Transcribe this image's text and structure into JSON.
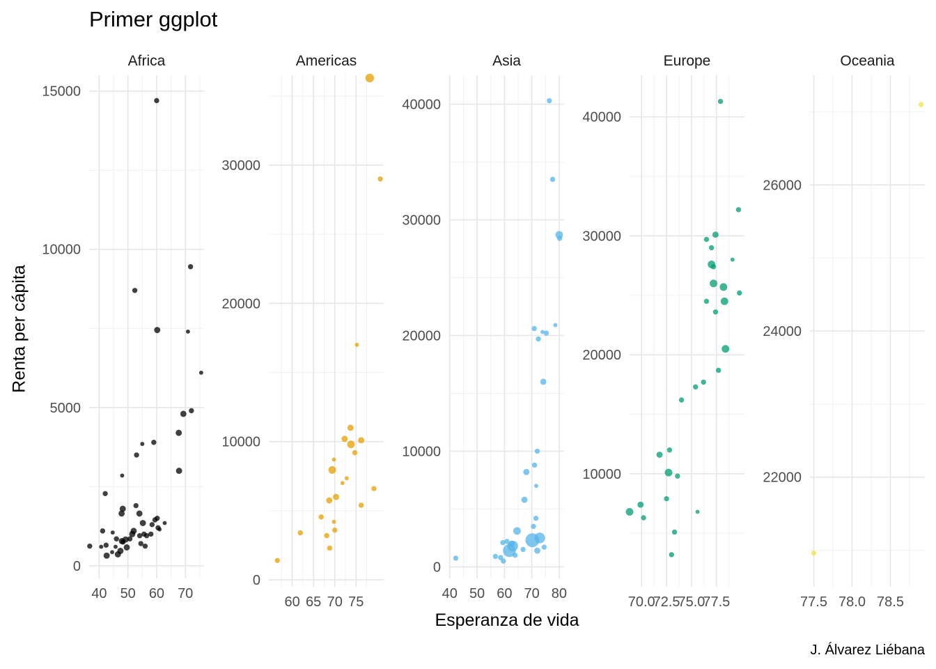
{
  "title": "Primer ggplot",
  "caption": "J. Álvarez Liébana",
  "chart_data": {
    "type": "scatter",
    "xlabel": "Esperanza de vida",
    "ylabel": "Renta per cápita",
    "facet_scales": "free",
    "colors": {
      "Africa": "#000000",
      "Americas": "#E69F00",
      "Asia": "#56B4E9",
      "Europe": "#009E73",
      "Oceania": "#F0E442"
    },
    "point_opacity": 0.75,
    "size_encoding": "population (no legend shown)",
    "grid": true,
    "facets": [
      {
        "name": "Africa",
        "xlim": [
          36.5,
          76.5
        ],
        "ylim": [
          -400,
          15500
        ],
        "xticks": [
          40,
          50,
          60,
          70
        ],
        "yticks": [
          0,
          5000,
          10000,
          15000
        ],
        "points": [
          [
            60.0,
            14700,
            2
          ],
          [
            52.4,
            8700,
            2
          ],
          [
            71.8,
            9450,
            2
          ],
          [
            60.2,
            7450,
            3
          ],
          [
            70.9,
            7400,
            1
          ],
          [
            75.5,
            6100,
            1
          ],
          [
            72.1,
            4900,
            2
          ],
          [
            69.3,
            4800,
            3
          ],
          [
            67.7,
            4200,
            3
          ],
          [
            67.8,
            3000,
            3
          ],
          [
            55.0,
            3850,
            1
          ],
          [
            59.0,
            3900,
            2
          ],
          [
            53.0,
            3500,
            2
          ],
          [
            48.0,
            2850,
            1
          ],
          [
            42.1,
            2280,
            2
          ],
          [
            52.8,
            1900,
            2
          ],
          [
            48.2,
            1800,
            3
          ],
          [
            47.8,
            1650,
            3
          ],
          [
            54.0,
            1650,
            3
          ],
          [
            55.2,
            1350,
            3
          ],
          [
            59.4,
            1450,
            2
          ],
          [
            60.2,
            1500,
            2
          ],
          [
            62.8,
            1350,
            1
          ],
          [
            58.4,
            1300,
            2
          ],
          [
            60.5,
            1200,
            2
          ],
          [
            41.2,
            1100,
            2
          ],
          [
            44.7,
            1050,
            1
          ],
          [
            46.0,
            850,
            2
          ],
          [
            47.9,
            780,
            3
          ],
          [
            49.2,
            830,
            3
          ],
          [
            50.7,
            850,
            2
          ],
          [
            51.5,
            1000,
            3
          ],
          [
            52.0,
            1100,
            3
          ],
          [
            54.1,
            950,
            2
          ],
          [
            55.6,
            1000,
            2
          ],
          [
            56.5,
            950,
            2
          ],
          [
            58.0,
            1000,
            2
          ],
          [
            61.0,
            1150,
            1
          ],
          [
            36.7,
            620,
            2
          ],
          [
            40.7,
            600,
            1
          ],
          [
            42.4,
            650,
            2
          ],
          [
            45.7,
            600,
            1
          ],
          [
            47.4,
            470,
            3
          ],
          [
            48.3,
            750,
            2
          ],
          [
            49.6,
            580,
            3
          ],
          [
            54.5,
            700,
            2
          ],
          [
            56.0,
            620,
            2
          ],
          [
            46.5,
            360,
            3
          ],
          [
            42.6,
            320,
            3
          ],
          [
            44.5,
            430,
            1
          ]
        ]
      },
      {
        "name": "Americas",
        "xlim": [
          54.5,
          81.5
        ],
        "ylim": [
          -500,
          36500
        ],
        "xticks": [
          60,
          65,
          70,
          75
        ],
        "yticks": [
          0,
          10000,
          20000,
          30000
        ],
        "points": [
          [
            78.2,
            36300,
            5
          ],
          [
            80.7,
            29000,
            2
          ],
          [
            75.2,
            17000,
            1
          ],
          [
            73.7,
            11000,
            3
          ],
          [
            72.3,
            10200,
            3
          ],
          [
            73.8,
            9800,
            4
          ],
          [
            76.2,
            10100,
            3
          ],
          [
            74.7,
            9200,
            2
          ],
          [
            69.8,
            8700,
            1
          ],
          [
            69.4,
            7950,
            4
          ],
          [
            72.8,
            7350,
            1
          ],
          [
            70.3,
            6000,
            3
          ],
          [
            71.8,
            7000,
            1
          ],
          [
            79.2,
            6600,
            2
          ],
          [
            68.7,
            5750,
            3
          ],
          [
            76.2,
            5400,
            2
          ],
          [
            66.8,
            4550,
            2
          ],
          [
            69.8,
            4200,
            1
          ],
          [
            70.0,
            3600,
            2
          ],
          [
            61.9,
            3400,
            2
          ],
          [
            68.1,
            3200,
            2
          ],
          [
            68.8,
            2300,
            2
          ],
          [
            56.5,
            1400,
            2
          ]
        ]
      },
      {
        "name": "Asia",
        "xlim": [
          39.8,
          81.8
        ],
        "ylim": [
          -1000,
          42500
        ],
        "xticks": [
          40,
          50,
          60,
          70,
          80
        ],
        "yticks": [
          0,
          10000,
          20000,
          30000,
          40000
        ],
        "points": [
          [
            76.4,
            40300,
            2
          ],
          [
            77.6,
            33500,
            2
          ],
          [
            80.0,
            28700,
            4
          ],
          [
            80.2,
            28400,
            2
          ],
          [
            70.9,
            20600,
            2
          ],
          [
            73.9,
            20300,
            1
          ],
          [
            75.3,
            20200,
            2
          ],
          [
            78.6,
            20900,
            1
          ],
          [
            72.4,
            19700,
            2
          ],
          [
            74.2,
            16000,
            3
          ],
          [
            72.0,
            10000,
            2
          ],
          [
            71.0,
            8800,
            2
          ],
          [
            68.0,
            8200,
            3
          ],
          [
            71.6,
            7000,
            1
          ],
          [
            67.3,
            5800,
            3
          ],
          [
            71.5,
            4200,
            2
          ],
          [
            70.6,
            3500,
            2
          ],
          [
            72.9,
            2500,
            7
          ],
          [
            64.6,
            3100,
            4
          ],
          [
            70.2,
            2300,
            10
          ],
          [
            63.0,
            1800,
            7
          ],
          [
            62.7,
            2000,
            3
          ],
          [
            60.9,
            2200,
            2
          ],
          [
            59.4,
            2100,
            2
          ],
          [
            61.8,
            1400,
            9
          ],
          [
            56.7,
            900,
            2
          ],
          [
            58.6,
            800,
            2
          ],
          [
            59.6,
            500,
            2
          ],
          [
            63.9,
            1000,
            2
          ],
          [
            66.8,
            1500,
            2
          ],
          [
            72.0,
            1400,
            3
          ],
          [
            74.5,
            1700,
            2
          ],
          [
            42.2,
            750,
            2
          ]
        ]
      },
      {
        "name": "Europe",
        "xlim": [
          68.8,
          80.3
        ],
        "ylim": [
          500,
          43500
        ],
        "xticks": [
          70.0,
          72.5,
          75.0,
          77.5
        ],
        "xtick_labels": [
          "70.0",
          "72.5",
          "75.0",
          "77.5"
        ],
        "yticks": [
          10000,
          20000,
          30000,
          40000
        ],
        "points": [
          [
            77.9,
            41300,
            2
          ],
          [
            79.7,
            32200,
            2
          ],
          [
            77.4,
            30100,
            3
          ],
          [
            76.5,
            29700,
            2
          ],
          [
            77.0,
            29000,
            2
          ],
          [
            79.1,
            28000,
            1
          ],
          [
            77.0,
            27600,
            4
          ],
          [
            77.2,
            27400,
            2
          ],
          [
            77.2,
            26000,
            4
          ],
          [
            78.2,
            25700,
            4
          ],
          [
            79.8,
            25200,
            2
          ],
          [
            76.5,
            24500,
            2
          ],
          [
            78.3,
            24500,
            4
          ],
          [
            77.4,
            23600,
            2
          ],
          [
            78.4,
            20500,
            4
          ],
          [
            77.7,
            18700,
            2
          ],
          [
            76.2,
            17700,
            2
          ],
          [
            75.4,
            17300,
            2
          ],
          [
            74.0,
            16200,
            2
          ],
          [
            71.8,
            11600,
            3
          ],
          [
            72.8,
            12000,
            2
          ],
          [
            72.7,
            10100,
            4
          ],
          [
            73.6,
            9800,
            2
          ],
          [
            72.5,
            7900,
            2
          ],
          [
            69.9,
            7400,
            3
          ],
          [
            68.8,
            6800,
            4
          ],
          [
            70.2,
            6300,
            2
          ],
          [
            75.6,
            6800,
            1
          ],
          [
            73.3,
            5100,
            2
          ],
          [
            73.0,
            3200,
            2
          ]
        ]
      },
      {
        "name": "Oceania",
        "xlim": [
          77.45,
          78.95
        ],
        "ylim": [
          20500,
          27500
        ],
        "xticks": [
          77.5,
          78.0,
          78.5
        ],
        "xtick_labels": [
          "77.5",
          "78.0",
          "78.5"
        ],
        "yticks": [
          22000,
          24000,
          26000
        ],
        "points": [
          [
            78.9,
            27100,
            2
          ],
          [
            77.5,
            20960,
            2
          ]
        ]
      }
    ]
  }
}
